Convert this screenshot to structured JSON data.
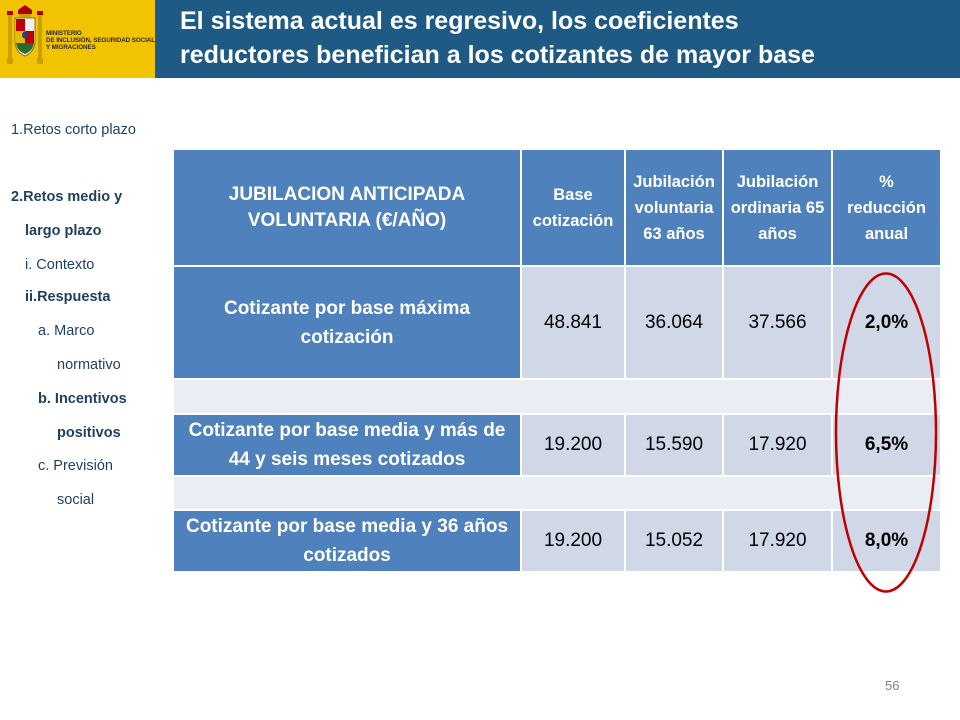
{
  "header": {
    "ministry_lines": [
      "MINISTERIO",
      "DE INCLUSIÓN, SEGURIDAD SOCIAL",
      "Y MIGRACIONES"
    ],
    "title_lines": [
      "El sistema actual es regresivo, los coeficientes",
      "reductores benefician a los cotizantes de mayor base"
    ],
    "colors": {
      "logo_bg": "#f2c300",
      "title_bg": "#1f5a85"
    }
  },
  "sidebar": {
    "items": [
      {
        "label": "1.Retos corto plazo"
      },
      {
        "label": "2.Retos medio y"
      },
      {
        "label": "largo plazo"
      },
      {
        "label": "i. Contexto"
      },
      {
        "label": "ii.Respuesta"
      },
      {
        "label": "a. Marco"
      },
      {
        "label": "normativo"
      },
      {
        "label": "b. Incentivos"
      },
      {
        "label": "positivos"
      },
      {
        "label": "c. Previsión"
      },
      {
        "label": "social"
      }
    ]
  },
  "table": {
    "headers": [
      "JUBILACION ANTICIPADA VOLUNTARIA (€/AÑO)",
      "Base cotización",
      "Jubilación voluntaria 63 años",
      "Jubilación ordinaria 65 años",
      "% reducción anual"
    ],
    "rows": [
      {
        "label": "Cotizante por base máxima cotización",
        "base": "48.841",
        "voluntaria": "36.064",
        "ordinaria": "37.566",
        "reduccion": "2,0%"
      },
      {
        "label": "Cotizante por base media y más de 44 y seis meses cotizados",
        "base": "19.200",
        "voluntaria": "15.590",
        "ordinaria": "17.920",
        "reduccion": "6,5%"
      },
      {
        "label": "Cotizante por base media y 36 años cotizados",
        "base": "19.200",
        "voluntaria": "15.052",
        "ordinaria": "17.920",
        "reduccion": "8,0%"
      }
    ],
    "colors": {
      "header_bg": "#4f81bd",
      "cell_bg": "#d0d8e8",
      "highlight": "#c00000"
    }
  },
  "footer": {
    "page_number": "56"
  }
}
